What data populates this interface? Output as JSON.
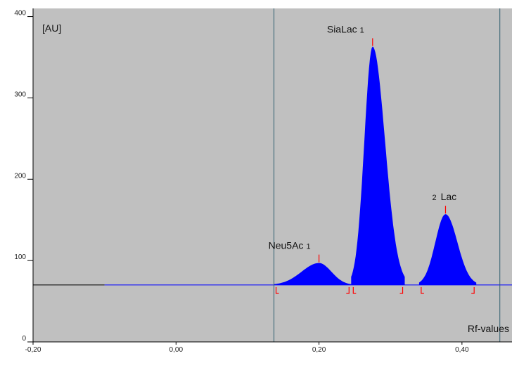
{
  "chart_data": {
    "type": "area",
    "y_unit_label": "[AU]",
    "x_axis_label": "Rf-values",
    "xlim": [
      -0.2,
      0.47
    ],
    "ylim": [
      0,
      410
    ],
    "x_ticks": [
      {
        "value": -0.2,
        "label": "-0,20"
      },
      {
        "value": 0.0,
        "label": "0,00"
      },
      {
        "value": 0.2,
        "label": "0,20"
      },
      {
        "value": 0.4,
        "label": "0,40"
      }
    ],
    "y_ticks": [
      {
        "value": 0,
        "label": "0"
      },
      {
        "value": 100,
        "label": "100"
      },
      {
        "value": 200,
        "label": "200"
      },
      {
        "value": 300,
        "label": "300"
      },
      {
        "value": 400,
        "label": "400"
      }
    ],
    "baseline": 70,
    "baseline_start": -0.1,
    "front_lines": [
      0.137,
      0.453
    ],
    "peaks": [
      {
        "name": "Neu5Ac",
        "number": "1",
        "start": 0.137,
        "max": 0.2,
        "end": 0.245,
        "height": 97,
        "label_side": "left"
      },
      {
        "name": "SiaLac",
        "number": "1",
        "start": 0.245,
        "max": 0.275,
        "end": 0.32,
        "height": 363,
        "label_side": "left"
      },
      {
        "name": "Lac",
        "number": "2",
        "start": 0.34,
        "max": 0.377,
        "end": 0.42,
        "height": 157,
        "label_side": "right"
      }
    ],
    "colors": {
      "plot_background": "#c0c0c0",
      "peak_fill": "#0000ff",
      "baseline": "#0000ff",
      "pre_baseline": "#000000",
      "markers": "#ff0000",
      "front_lines": "#2f5f6f"
    }
  }
}
